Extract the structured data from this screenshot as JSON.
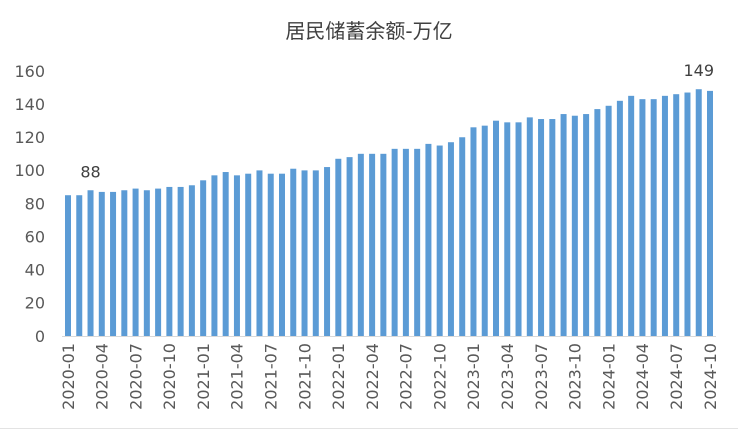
{
  "chart_data": {
    "type": "bar",
    "title": "居民储蓄余额-万亿",
    "ylim": [
      0,
      160
    ],
    "yticks": [
      0,
      20,
      40,
      60,
      80,
      100,
      120,
      140,
      160
    ],
    "categories": [
      "2020-01",
      "2020-02",
      "2020-03",
      "2020-04",
      "2020-05",
      "2020-06",
      "2020-07",
      "2020-08",
      "2020-09",
      "2020-10",
      "2020-11",
      "2020-12",
      "2021-01",
      "2021-02",
      "2021-03",
      "2021-04",
      "2021-05",
      "2021-06",
      "2021-07",
      "2021-08",
      "2021-09",
      "2021-10",
      "2021-11",
      "2021-12",
      "2022-01",
      "2022-02",
      "2022-03",
      "2022-04",
      "2022-05",
      "2022-06",
      "2022-07",
      "2022-08",
      "2022-09",
      "2022-10",
      "2022-11",
      "2022-12",
      "2023-01",
      "2023-02",
      "2023-03",
      "2023-04",
      "2023-05",
      "2023-06",
      "2023-07",
      "2023-08",
      "2023-09",
      "2023-10",
      "2023-11",
      "2023-12",
      "2024-01",
      "2024-02",
      "2024-03",
      "2024-04",
      "2024-05",
      "2024-06",
      "2024-07",
      "2024-08",
      "2024-09",
      "2024-10"
    ],
    "values": [
      85,
      85,
      88,
      87,
      87,
      88,
      89,
      88,
      89,
      90,
      90,
      91,
      94,
      97,
      99,
      97,
      98,
      100,
      98,
      98,
      101,
      100,
      100,
      102,
      107,
      108,
      110,
      110,
      110,
      113,
      113,
      113,
      116,
      115,
      117,
      120,
      126,
      127,
      130,
      129,
      129,
      132,
      131,
      131,
      134,
      133,
      134,
      137,
      139,
      142,
      145,
      143,
      143,
      145,
      146,
      147,
      149,
      148
    ],
    "x_tick_labels": [
      "2020-01",
      "2020-04",
      "2020-07",
      "2020-10",
      "2021-01",
      "2021-04",
      "2021-07",
      "2021-10",
      "2022-01",
      "2022-04",
      "2022-07",
      "2022-10",
      "2023-01",
      "2023-04",
      "2023-07",
      "2023-10",
      "2024-01",
      "2024-04",
      "2024-07",
      "2024-10"
    ],
    "data_labels": [
      {
        "x": "2020-03",
        "text": "88"
      },
      {
        "x": "2024-09",
        "text": "149"
      }
    ],
    "grid": false,
    "legend": false,
    "colors": {
      "bar": "#5B9BD5",
      "title": "#404040",
      "tick_label": "#595959",
      "data_label": "#404040",
      "axis": "#D9D9D9"
    }
  }
}
